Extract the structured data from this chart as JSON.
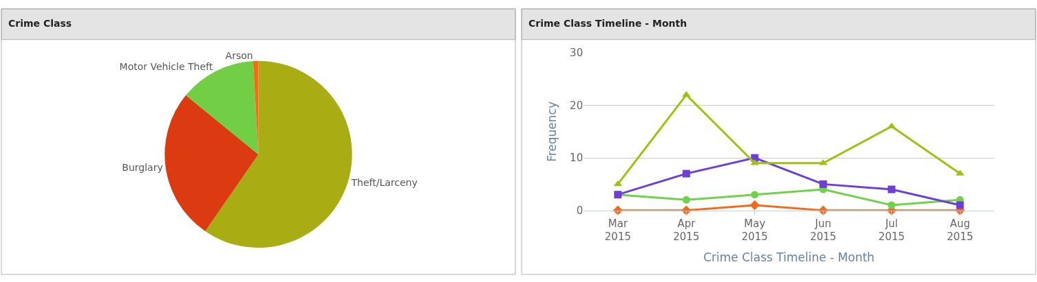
{
  "chart_data": [
    {
      "type": "pie",
      "title": "Crime Class",
      "categories": [
        "Theft/Larceny",
        "Burglary",
        "Motor Vehicle Theft",
        "Arson"
      ],
      "values": [
        59.6,
        26.3,
        13.2,
        0.9
      ],
      "colors": [
        "#a9ac12",
        "#dc3b12",
        "#72cf45",
        "#f86a12"
      ]
    },
    {
      "type": "line",
      "title": "Crime Class Timeline - Month",
      "xlabel": "Crime Class Timeline - Month",
      "ylabel": "Frequency",
      "categories": [
        "Mar 2015",
        "Apr 2015",
        "May 2015",
        "Jun 2015",
        "Jul 2015",
        "Aug 2015"
      ],
      "ylim": [
        0,
        30
      ],
      "yticks": [
        0,
        10,
        20,
        30
      ],
      "grid": "y",
      "series": [
        {
          "color": "#a3c012",
          "marker": "triangle",
          "values": [
            5,
            22,
            9,
            9,
            16,
            7
          ]
        },
        {
          "color": "#6e3fd6",
          "marker": "square",
          "values": [
            3,
            7,
            10,
            5,
            4,
            1
          ]
        },
        {
          "color": "#6fd24a",
          "marker": "circle",
          "values": [
            3,
            2,
            3,
            4,
            1,
            2
          ]
        },
        {
          "color": "#f26a1b",
          "marker": "diamond",
          "values": [
            0,
            0,
            1,
            0,
            0,
            0
          ]
        }
      ]
    }
  ]
}
